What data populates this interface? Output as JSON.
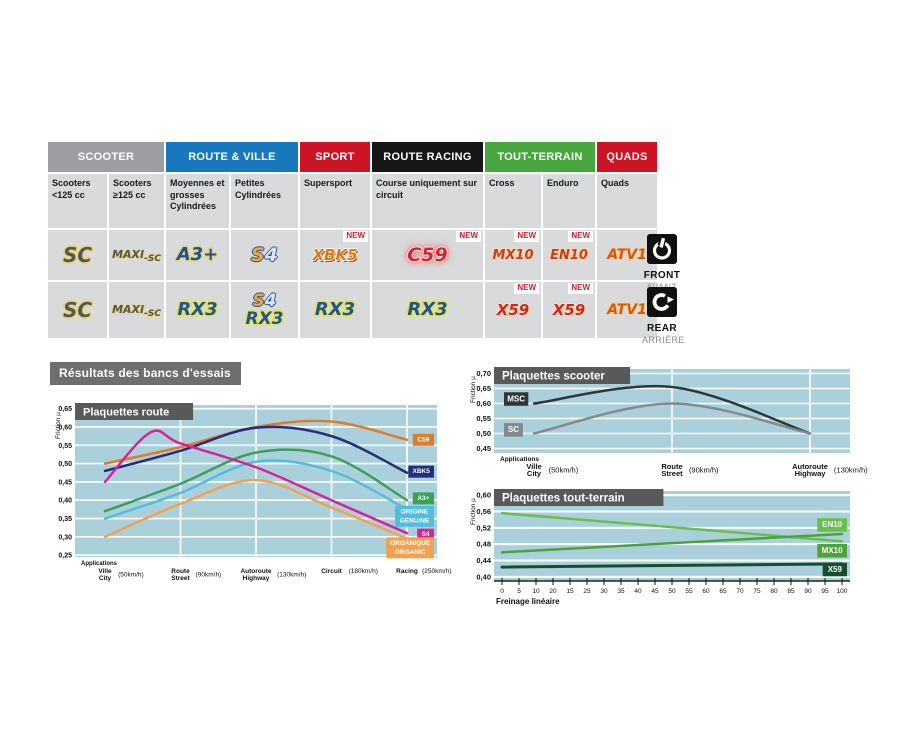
{
  "colors": {
    "chart_bg": "#aad0dc",
    "title_bar": "#58595b",
    "section_bar": "#6d6e70",
    "cell_bg": "#d9dadb",
    "new_red": "#d21c2a"
  },
  "table": {
    "groups": [
      {
        "label": "SCOOTER",
        "color": "#9c9ea1"
      },
      {
        "label": "ROUTE & VILLE",
        "color": "#1878be"
      },
      {
        "label": "SPORT",
        "color": "#cd1326"
      },
      {
        "label": "ROUTE RACING",
        "color": "#161616"
      },
      {
        "label": "TOUT-TERRAIN",
        "color": "#47a63d"
      },
      {
        "label": "QUADS",
        "color": "#cd1326"
      }
    ],
    "subheaders": [
      "Scooters <125 cc",
      "Scooters ≥125 cc",
      "Moyennes et grosses Cylindrées",
      "Petites Cylindrées",
      "Supersport",
      "Course uniquement sur circuit",
      "Cross",
      "Enduro",
      "Quads"
    ],
    "new_label": "NEW",
    "front_row": {
      "c1": {
        "logo": "SC"
      },
      "c2": {
        "logo_parts": [
          "MAXI",
          "-SC"
        ]
      },
      "c3": {
        "logo": "A3+"
      },
      "c4": {
        "logo_parts": [
          "S",
          "4"
        ]
      },
      "c5": {
        "logo": "XBK5",
        "new": true
      },
      "c6": {
        "logo": "C59",
        "new": true
      },
      "c7": {
        "logo": "MX10",
        "new": true
      },
      "c8": {
        "logo": "EN10",
        "new": true
      },
      "c9": {
        "logo": "ATV1"
      }
    },
    "rear_row": {
      "c1": {
        "logo": "SC"
      },
      "c2": {
        "logo_parts": [
          "MAXI",
          "-SC"
        ]
      },
      "c3": {
        "logo": "RX3"
      },
      "c4": {
        "logo_parts": [
          "S",
          "4"
        ],
        "logo2": "RX3"
      },
      "c5": {
        "logo": "RX3"
      },
      "c6": {
        "logo": "RX3"
      },
      "c7": {
        "logo": "X59",
        "new": true
      },
      "c8": {
        "logo": "X59",
        "new": true
      },
      "c9": {
        "logo": "ATV1"
      }
    },
    "front": {
      "label": "FRONT",
      "sub": "AVANT"
    },
    "rear": {
      "label": "REAR",
      "sub": "ARRIÈRE"
    }
  },
  "section_title": "Résultats des bancs d'essais",
  "chart_data": [
    {
      "id": "route",
      "type": "line",
      "title": "Plaquettes route",
      "ylabel": "Friction µ",
      "ylim": [
        0.245,
        0.66
      ],
      "y_ticks": [
        0.65,
        0.6,
        0.55,
        0.5,
        0.45,
        0.4,
        0.35,
        0.3,
        0.25
      ],
      "y_tick_labels": [
        "0,65",
        "0,60",
        "0,55",
        "0,50",
        "0,45",
        "0,40",
        "0,35",
        "0,30",
        "0,25"
      ],
      "x_axis_note": "Applications",
      "stations": [
        {
          "fr": "Ville",
          "en": "City",
          "speed": "(50km/h)"
        },
        {
          "fr": "Route",
          "en": "Street",
          "speed": "(90km/h)"
        },
        {
          "fr": "Autoroute",
          "en": "Highway",
          "speed": "(130km/h)"
        },
        {
          "fr": "Circuit",
          "en": "",
          "speed": "(180km/h)"
        },
        {
          "fr": "Racing",
          "en": "",
          "speed": "(250km/h)"
        }
      ],
      "smooth": true,
      "grid": true,
      "legend_position": "right-inside",
      "v_grid_stations": [
        1,
        2,
        3,
        4
      ],
      "series": [
        {
          "name": "C59",
          "color": "#e07b28",
          "values": [
            0.5,
            0.545,
            0.6,
            0.615,
            0.565
          ],
          "label_lines": [
            "C59"
          ],
          "label_v": 0.565
        },
        {
          "name": "XBK5",
          "color": "#232e7e",
          "values": [
            0.48,
            0.535,
            0.598,
            0.575,
            0.475
          ],
          "label_lines": [
            "XBK5"
          ],
          "label_v": 0.478
        },
        {
          "name": "A3+",
          "color": "#3aa157",
          "values": [
            0.37,
            0.445,
            0.53,
            0.52,
            0.4
          ],
          "label_lines": [
            "A3+"
          ],
          "label_v": 0.405
        },
        {
          "name": "ORIGINE / GENUINE",
          "color": "#52bedd",
          "values": [
            0.35,
            0.42,
            0.505,
            0.48,
            0.375
          ],
          "label_lines": [
            "ORIGINE",
            "GENUINE"
          ],
          "label_v": 0.356
        },
        {
          "name": "S4",
          "color": "#d8219b",
          "x": [
            0,
            0.6,
            1,
            2,
            3,
            4
          ],
          "values": [
            0.45,
            0.585,
            0.555,
            0.49,
            0.4,
            0.31
          ],
          "label_lines": [
            "S4"
          ],
          "label_v": 0.306
        },
        {
          "name": "ORGANIQUE / ORGANIC",
          "color": "#f2a24e",
          "values": [
            0.3,
            0.39,
            0.455,
            0.38,
            0.295
          ],
          "label_lines": [
            "ORGANIQUE",
            "ORGANIC"
          ],
          "label_v": 0.27
        }
      ]
    },
    {
      "id": "scooter",
      "type": "line",
      "title": "Plaquettes scooter",
      "ylabel": "Friction µ",
      "ylim": [
        0.435,
        0.715
      ],
      "y_ticks": [
        0.7,
        0.65,
        0.6,
        0.55,
        0.5,
        0.45
      ],
      "y_tick_labels": [
        "0,70",
        "0,65",
        "0,60",
        "0,55",
        "0,50",
        "0,45"
      ],
      "x_axis_note": "Applications",
      "stations": [
        {
          "fr": "Ville",
          "en": "City",
          "speed": "(50km/h)"
        },
        {
          "fr": "Route",
          "en": "Street",
          "speed": "(90km/h)"
        },
        {
          "fr": "Autoroute",
          "en": "Highway",
          "speed": "(130km/h)"
        }
      ],
      "smooth": true,
      "grid": true,
      "legend_position": "left-inside",
      "v_grid_stations": [
        1,
        2
      ],
      "series": [
        {
          "name": "MSC",
          "color": "#2f373c",
          "values": [
            0.6,
            0.655,
            0.5
          ],
          "label_lines": [
            "MSC"
          ],
          "label_v": 0.615
        },
        {
          "name": "SC",
          "color": "#83898c",
          "values": [
            0.5,
            0.6,
            0.5
          ],
          "label_lines": [
            "SC"
          ],
          "label_v": 0.512
        }
      ]
    },
    {
      "id": "terrain",
      "type": "line",
      "title": "Plaquettes tout-terrain",
      "ylabel": "Friction µ",
      "ylim": [
        0.39,
        0.61
      ],
      "y_ticks": [
        0.6,
        0.56,
        0.52,
        0.48,
        0.44,
        0.4
      ],
      "y_tick_labels": [
        "0,60",
        "0,56",
        "0,52",
        "0,48",
        "0,44",
        "0,40"
      ],
      "xlabel": "Freinage linéaire",
      "x_ticks": [
        "0",
        "5",
        "10",
        "20",
        "15",
        "25",
        "30",
        "35",
        "40",
        "45",
        "50",
        "55",
        "60",
        "65",
        "70",
        "75",
        "80",
        "85",
        "90",
        "95",
        "100"
      ],
      "smooth": false,
      "grid": true,
      "legend_position": "right-inside",
      "series": [
        {
          "name": "EN10",
          "color": "#6abf4b",
          "points": [
            [
              0,
              0.556
            ],
            [
              100,
              0.487
            ]
          ],
          "label_lines": [
            "EN10"
          ],
          "label_v": 0.527,
          "lw": 2.5
        },
        {
          "name": "MX10",
          "color": "#4da339",
          "points": [
            [
              0,
              0.46
            ],
            [
              100,
              0.505
            ]
          ],
          "label_lines": [
            "MX10"
          ],
          "label_v": 0.464,
          "lw": 2.5
        },
        {
          "name": "X59",
          "color": "#14502b",
          "points": [
            [
              0,
              0.424
            ],
            [
              100,
              0.432
            ]
          ],
          "label_lines": [
            "X59"
          ],
          "label_v": 0.418,
          "lw": 3
        }
      ]
    }
  ]
}
